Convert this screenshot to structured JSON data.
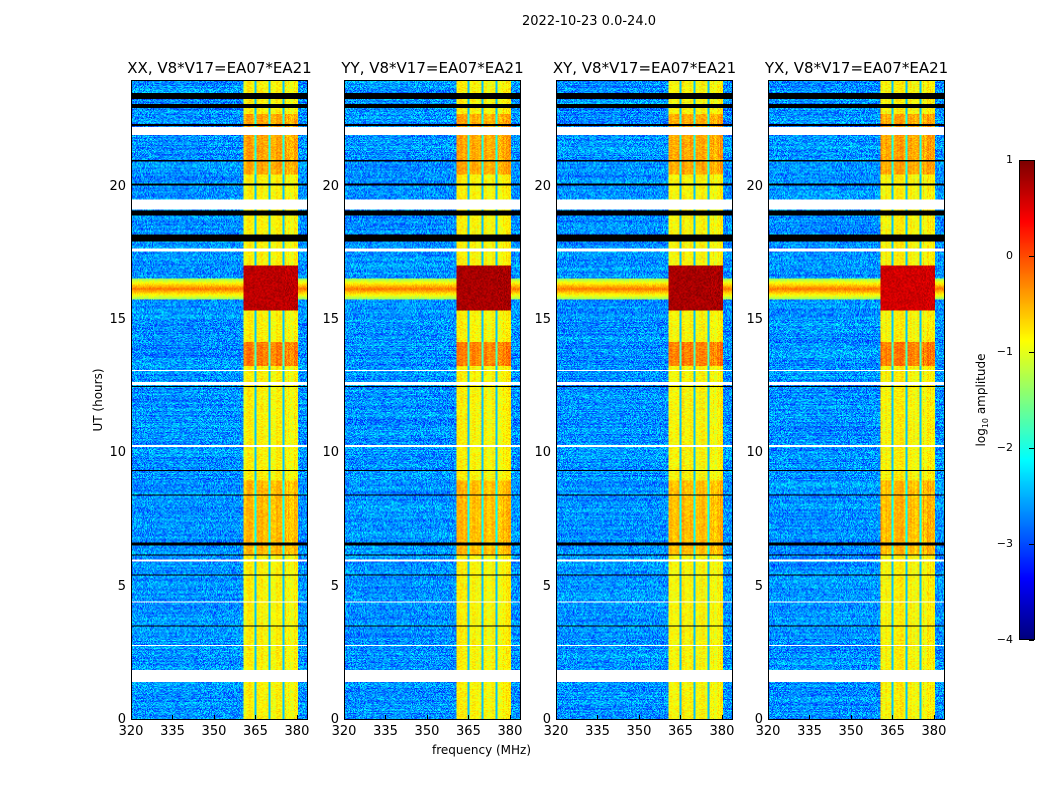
{
  "chart_data": {
    "type": "heatmap",
    "title": "2022-10-23 0.0-24.0",
    "xlabel": "frequency (MHz)",
    "ylabel": "UT (hours)",
    "xlim": [
      320,
      384
    ],
    "ylim": [
      0,
      24
    ],
    "xticks": [
      "320",
      "335",
      "350",
      "365",
      "380"
    ],
    "xtick_values": [
      320,
      335,
      350,
      365,
      380
    ],
    "yticks": [
      "0",
      "5",
      "10",
      "15",
      "20"
    ],
    "ytick_values": [
      0,
      5,
      10,
      15,
      20
    ],
    "colorbar": {
      "label": "log10 amplitude",
      "label_main": "log",
      "label_sub": "10",
      "label_rest": " amplitude",
      "range": [
        -4,
        1
      ],
      "ticks": [
        "1",
        "0",
        "−1",
        "−2",
        "−3",
        "−4"
      ],
      "tick_values": [
        1,
        0,
        -1,
        -2,
        -3,
        -4
      ],
      "colormap": "jet"
    },
    "panels": [
      {
        "title": "XX, V8*V17=EA07*EA21",
        "rfi_peak": 0.9
      },
      {
        "title": "YY, V8*V17=EA07*EA21",
        "rfi_peak": 1.0
      },
      {
        "title": "XY, V8*V17=EA07*EA21",
        "rfi_peak": 1.0
      },
      {
        "title": "YX, V8*V17=EA07*EA21",
        "rfi_peak": 0.8
      }
    ],
    "background_log_amplitude": -2.8,
    "rfi_band_mhz": [
      360.5,
      380.5
    ],
    "rfi_subband_edges_mhz": [
      365,
      370,
      375
    ],
    "strong_rfi_hours": [
      15.4,
      17.1
    ],
    "broadband_rfi_hours": [
      15.8,
      16.6
    ],
    "flagged_blank_hours": [
      [
        1.4,
        1.87
      ],
      [
        19.2,
        19.55
      ],
      [
        22.0,
        22.3
      ],
      [
        12.6,
        12.7
      ],
      [
        10.25,
        10.35
      ],
      [
        5.95,
        6.0
      ],
      [
        4.4,
        4.45
      ],
      [
        2.75,
        2.8
      ],
      [
        17.6,
        17.7
      ],
      [
        13.1,
        13.15
      ]
    ],
    "flagged_black_hours": [
      [
        23.35,
        23.55
      ],
      [
        23.0,
        23.15
      ],
      [
        18.95,
        19.15
      ],
      [
        18.0,
        18.25
      ],
      [
        22.35,
        22.4
      ],
      [
        21.0,
        21.05
      ],
      [
        20.1,
        20.15
      ],
      [
        12.5,
        12.55
      ],
      [
        6.55,
        6.65
      ],
      [
        5.4,
        5.45
      ],
      [
        3.5,
        3.55
      ],
      [
        9.35,
        9.4
      ],
      [
        8.4,
        8.45
      ],
      [
        6.15,
        6.2
      ]
    ]
  }
}
